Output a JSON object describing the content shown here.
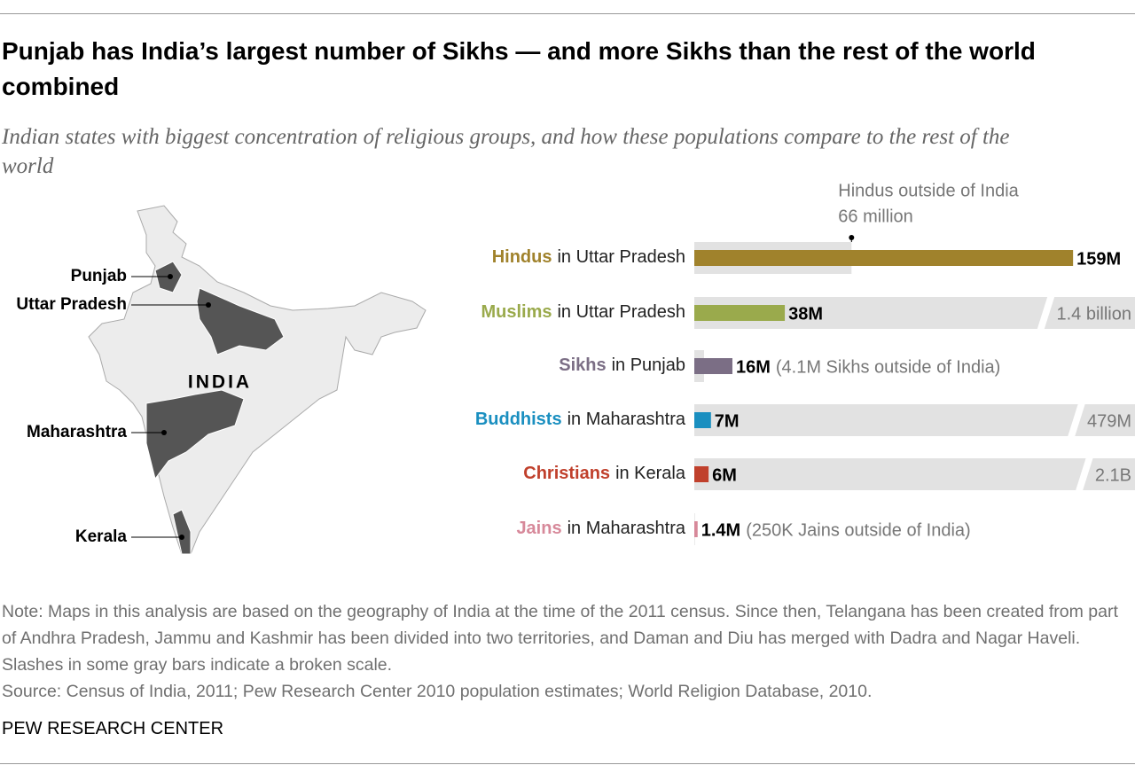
{
  "chart_data": {
    "type": "bar",
    "orientation": "horizontal",
    "title": "Punjab has India’s largest number of Sikhs — and more Sikhs than the rest of the world combined",
    "subtitle": "Indian states with biggest concentration of religious groups, and how these populations compare to the rest of the world",
    "categories": [
      "Hindus",
      "Muslims",
      "Sikhs",
      "Buddhists",
      "Christians",
      "Jains"
    ],
    "places": [
      "in Uttar Pradesh",
      "in Uttar Pradesh",
      "in Punjab",
      "in Maharashtra",
      "in Kerala",
      "in Maharashtra"
    ],
    "category_colors": [
      "#a0822c",
      "#9aaa4c",
      "#7b6e85",
      "#1a8fc0",
      "#c0402c",
      "#d7899a"
    ],
    "annotation": "Hindus outside of India",
    "broken_scale": true,
    "xlim": [
      0,
      185
    ],
    "series": [
      {
        "name": "Outside of India",
        "color": "#e2e2e2",
        "values": [
          66,
          1400,
          4.1,
          479,
          2100,
          0.25
        ],
        "value_labels": [
          "66 million",
          "1.4 billion",
          "(4.1M Sikhs outside of India)",
          "479M",
          "2.1B",
          "(250K Jains outside of India)"
        ]
      },
      {
        "name": "In state",
        "values": [
          159,
          38,
          16,
          7,
          6,
          1.4
        ],
        "value_labels": [
          "159M",
          "38M",
          "16M",
          "7M",
          "6M",
          "1.4M"
        ]
      }
    ]
  },
  "map": {
    "country": "INDIA",
    "states": [
      "Punjab",
      "Uttar Pradesh",
      "Maharashtra",
      "Kerala"
    ]
  },
  "note": "Note: Maps in this analysis are based on the geography of India at the time of the 2011 census. Since then, Telangana has been created from part of Andhra Pradesh, Jammu and Kashmir has been divided into two territories, and Daman and Diu has merged with Dadra and Nagar Haveli. Slashes in some gray bars indicate a broken scale.",
  "source": "Source: Census of India, 2011; Pew Research Center 2010 population estimates; World Religion Database, 2010.",
  "footer": "PEW RESEARCH CENTER"
}
